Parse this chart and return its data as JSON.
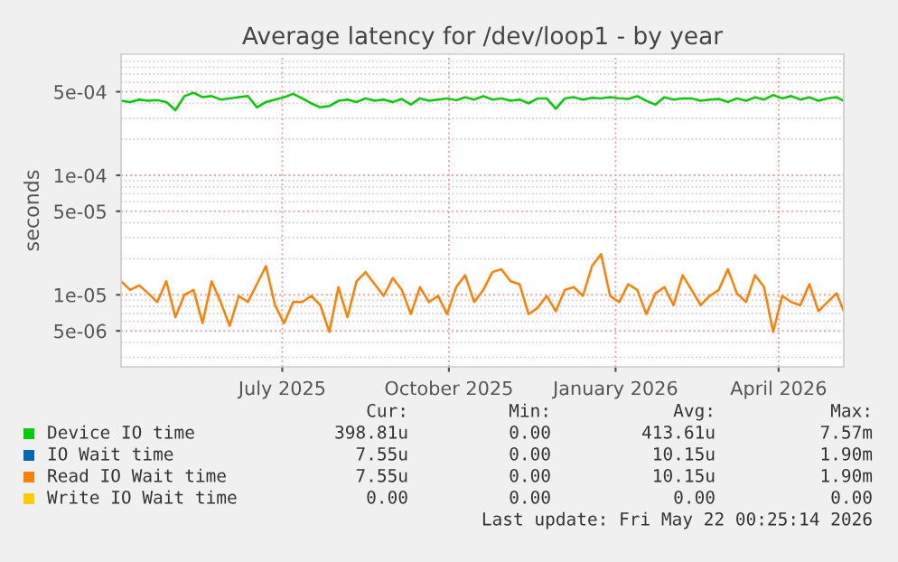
{
  "chart_data": {
    "type": "line",
    "title": "Average latency for /dev/loop1 - by year",
    "ylabel": "seconds",
    "x": [
      "2025-04-17",
      "2025-04-22",
      "2025-04-27",
      "2025-05-02",
      "2025-05-07",
      "2025-05-12",
      "2025-05-17",
      "2025-05-22",
      "2025-05-27",
      "2025-06-01",
      "2025-06-06",
      "2025-06-11",
      "2025-06-16",
      "2025-06-21",
      "2025-06-26",
      "2025-07-01",
      "2025-07-06",
      "2025-07-11",
      "2025-07-16",
      "2025-07-21",
      "2025-07-26",
      "2025-07-31",
      "2025-08-05",
      "2025-08-10",
      "2025-08-15",
      "2025-08-20",
      "2025-08-25",
      "2025-08-30",
      "2025-09-04",
      "2025-09-09",
      "2025-09-14",
      "2025-09-19",
      "2025-09-24",
      "2025-09-29",
      "2025-10-04",
      "2025-10-09",
      "2025-10-14",
      "2025-10-19",
      "2025-10-24",
      "2025-10-29",
      "2025-11-03",
      "2025-11-08",
      "2025-11-13",
      "2025-11-18",
      "2025-11-23",
      "2025-11-28",
      "2025-12-03",
      "2025-12-08",
      "2025-12-13",
      "2025-12-18",
      "2025-12-23",
      "2025-12-28",
      "2026-01-02",
      "2026-01-07",
      "2026-01-12",
      "2026-01-17",
      "2026-01-22",
      "2026-01-27",
      "2026-02-01",
      "2026-02-06",
      "2026-02-11",
      "2026-02-16",
      "2026-02-21",
      "2026-02-26",
      "2026-03-03",
      "2026-03-08",
      "2026-03-13",
      "2026-03-18",
      "2026-03-23",
      "2026-03-28",
      "2026-04-02",
      "2026-04-07",
      "2026-04-12",
      "2026-04-17",
      "2026-04-22",
      "2026-04-27",
      "2026-05-02",
      "2026-05-07",
      "2026-05-12",
      "2026-05-17",
      "2026-05-21"
    ],
    "series": [
      {
        "name": "Device IO time",
        "color": "#00cc00",
        "values": [
          0.00042,
          0.00041,
          0.00043,
          0.00042,
          0.000425,
          0.00041,
          0.00035,
          0.00046,
          0.00049,
          0.00045,
          0.00046,
          0.00043,
          0.00044,
          0.00045,
          0.00046,
          0.00037,
          0.00041,
          0.00043,
          0.00045,
          0.00048,
          0.00044,
          0.0004,
          0.00037,
          0.00038,
          0.00042,
          0.00043,
          0.00041,
          0.00044,
          0.00042,
          0.00043,
          0.00041,
          0.000435,
          0.00039,
          0.00044,
          0.00042,
          0.00043,
          0.00044,
          0.000425,
          0.00045,
          0.00043,
          0.00046,
          0.00043,
          0.00044,
          0.00042,
          0.00043,
          0.0004,
          0.00044,
          0.00044,
          0.00036,
          0.00044,
          0.00045,
          0.00043,
          0.000445,
          0.00044,
          0.00045,
          0.00044,
          0.000435,
          0.00046,
          0.00042,
          0.00039,
          0.00045,
          0.00043,
          0.00044,
          0.00044,
          0.00042,
          0.00043,
          0.000435,
          0.00041,
          0.00044,
          0.00042,
          0.00045,
          0.00043,
          0.00047,
          0.00044,
          0.00046,
          0.00043,
          0.00045,
          0.00042,
          0.00044,
          0.00045,
          0.00042
        ]
      },
      {
        "name": "IO Wait time",
        "color": "#0066b3",
        "values": [
          null,
          null,
          null,
          null,
          null,
          null,
          null,
          null,
          null,
          null,
          null,
          null,
          null,
          null,
          null,
          null,
          null,
          null,
          null,
          null,
          null,
          null,
          null,
          null,
          null,
          null,
          null,
          null,
          null,
          null,
          null,
          null,
          null,
          null,
          null,
          null,
          null,
          null,
          null,
          null,
          null,
          null,
          null,
          null,
          null,
          null,
          null,
          null,
          null,
          null,
          null,
          null,
          null,
          null,
          null,
          null,
          null,
          null,
          null,
          null,
          null,
          null,
          null,
          null,
          null,
          null,
          null,
          null,
          null,
          null,
          null,
          null,
          null,
          null,
          null,
          null,
          null,
          null,
          null,
          null,
          null
        ]
      },
      {
        "name": "Read IO Wait time",
        "color": "#ff8000",
        "values": [
          1.3e-05,
          1.1e-05,
          1.2e-05,
          1.03e-05,
          8.7e-06,
          1.3e-05,
          6.5e-06,
          1e-05,
          1.1e-05,
          5.8e-06,
          1.3e-05,
          8.7e-06,
          5.5e-06,
          9.8e-06,
          8.7e-06,
          1.23e-05,
          1.74e-05,
          8.2e-06,
          5.8e-06,
          8.7e-06,
          8.7e-06,
          9.8e-06,
          8.2e-06,
          4.9e-06,
          1.16e-05,
          6.5e-06,
          1.3e-05,
          1.55e-05,
          1.23e-05,
          9.8e-06,
          1.38e-05,
          1.1e-05,
          6.9e-06,
          1.16e-05,
          8.7e-06,
          9.8e-06,
          6.9e-06,
          1.16e-05,
          1.46e-05,
          8.7e-06,
          1.1e-05,
          1.55e-05,
          1.64e-05,
          1.3e-05,
          1.23e-05,
          6.9e-06,
          7.8e-06,
          9.8e-06,
          7.3e-06,
          1.1e-05,
          1.16e-05,
          9.8e-06,
          1.74e-05,
          2.19e-05,
          9.8e-06,
          8.7e-06,
          1.23e-05,
          1.1e-05,
          6.9e-06,
          1.03e-05,
          1.16e-05,
          8.2e-06,
          1.46e-05,
          1.1e-05,
          8.2e-06,
          9.8e-06,
          1.1e-05,
          1.64e-05,
          1.03e-05,
          8.7e-06,
          1.46e-05,
          1.16e-05,
          4.9e-06,
          9.8e-06,
          8.7e-06,
          8.2e-06,
          1.23e-05,
          7.3e-06,
          8.7e-06,
          1.03e-05,
          7.3e-06
        ]
      },
      {
        "name": "Write IO Wait time",
        "color": "#ffcc00",
        "values": [
          null,
          null,
          null,
          null,
          null,
          null,
          null,
          null,
          null,
          null,
          null,
          null,
          null,
          null,
          null,
          null,
          null,
          null,
          null,
          null,
          null,
          null,
          null,
          null,
          null,
          null,
          null,
          null,
          null,
          null,
          null,
          null,
          null,
          null,
          null,
          null,
          null,
          null,
          null,
          null,
          null,
          null,
          null,
          null,
          null,
          null,
          null,
          null,
          null,
          null,
          null,
          null,
          null,
          null,
          null,
          null,
          null,
          null,
          null,
          null,
          null,
          null,
          null,
          null,
          null,
          null,
          null,
          null,
          null,
          null,
          null,
          null,
          null,
          null,
          null,
          null,
          null,
          null,
          null,
          null,
          null
        ]
      }
    ],
    "log": "y",
    "ylim": [
      2.5e-06,
      0.00103
    ],
    "yticks": [
      {
        "value": 5e-06,
        "label": "5e-06"
      },
      {
        "value": 1e-05,
        "label": "1e-05"
      },
      {
        "value": 5e-05,
        "label": "5e-05"
      },
      {
        "value": 0.0001,
        "label": "1e-04"
      },
      {
        "value": 0.0005,
        "label": "5e-04"
      }
    ],
    "xlim": [
      "2025-04-17",
      "2026-05-21"
    ],
    "xticks": [
      {
        "value": "2025-07-15",
        "label": "July 2025"
      },
      {
        "value": "2025-10-15",
        "label": "October 2025"
      },
      {
        "value": "2026-01-15",
        "label": "January 2026"
      },
      {
        "value": "2026-04-15",
        "label": "April 2026"
      }
    ],
    "grid": true,
    "legend": "bottom",
    "marker": "none",
    "line_style": "solid",
    "annotations": [
      "Cur:",
      "Min:",
      "Avg:",
      "Max:",
      "398.81u",
      "0.00",
      "413.61u",
      "7.57m",
      "7.55u",
      "0.00",
      "10.15u",
      "1.90m",
      "7.55u",
      "0.00",
      "10.15u",
      "1.90m",
      "0.00",
      "0.00",
      "0.00",
      "0.00",
      "Last update: Fri May 22 00:25:14 2026"
    ]
  }
}
